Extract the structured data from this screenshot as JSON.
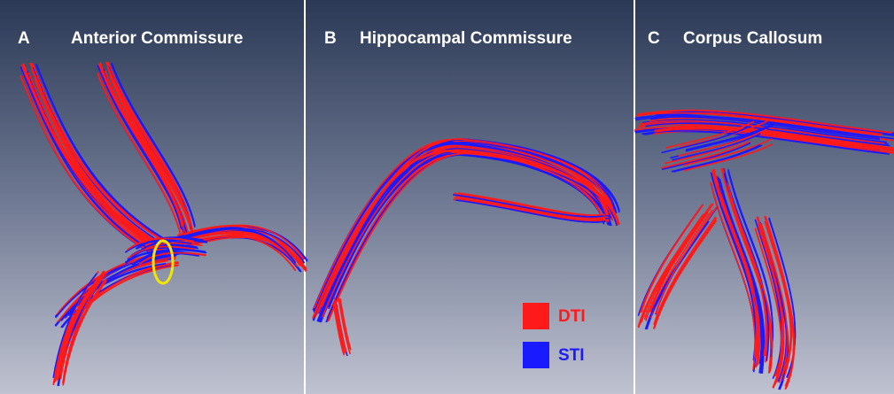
{
  "panels": [
    {
      "letter": "A",
      "title": "Anterior Commissure"
    },
    {
      "letter": "B",
      "title": "Hippocampal Commissure"
    },
    {
      "letter": "C",
      "title": "Corpus Callosum"
    }
  ],
  "legend": [
    {
      "label": "DTI",
      "color": "#ff1a1a"
    },
    {
      "label": "STI",
      "color": "#1a1aff"
    }
  ]
}
